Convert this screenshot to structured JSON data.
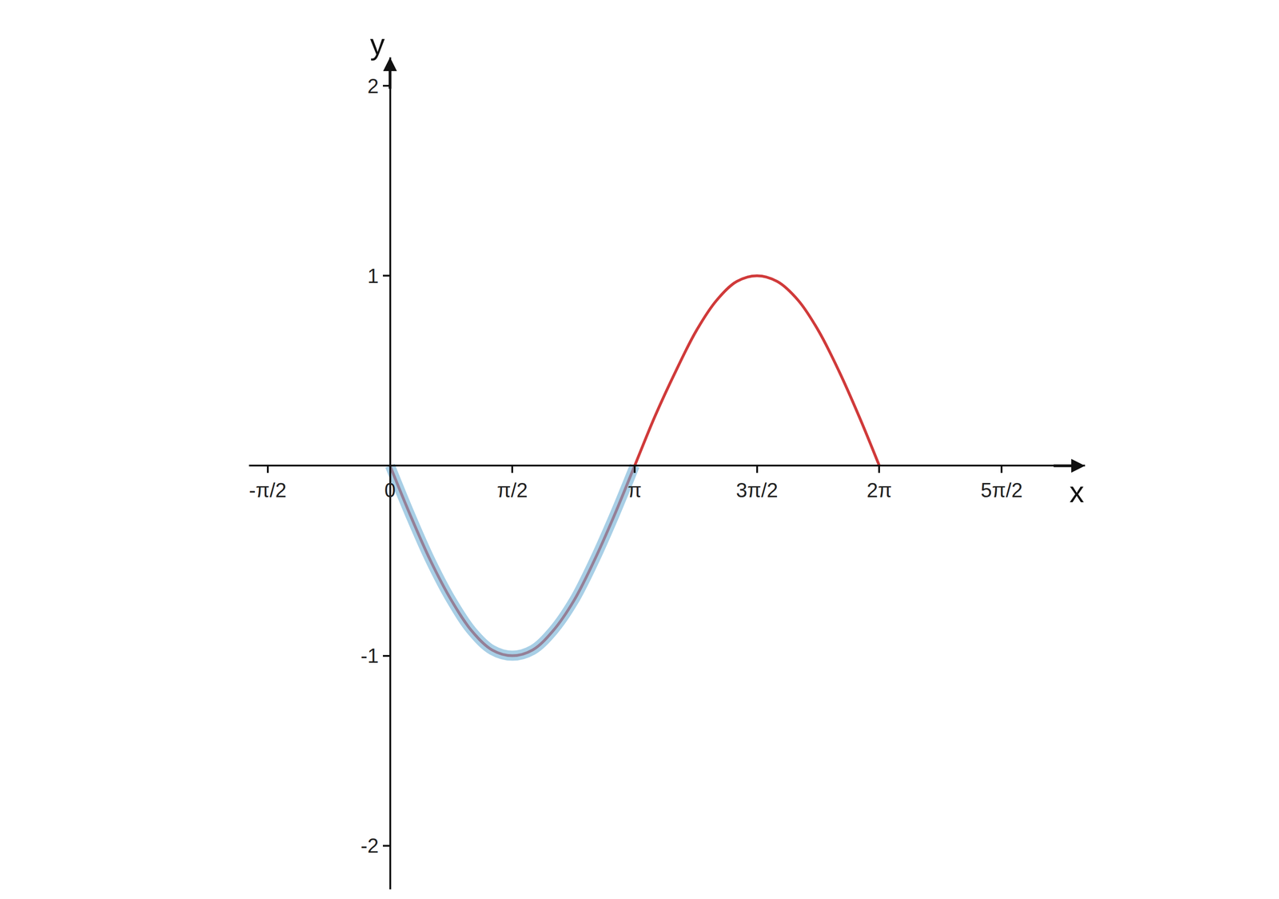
{
  "chart_data": {
    "type": "line",
    "x_label": "x",
    "y_label": "y",
    "xlim": [
      -1.81,
      8.92
    ],
    "ylim": [
      -2.23,
      2.15
    ],
    "xticks": [
      {
        "value": -1.57,
        "label": "-π/2"
      },
      0,
      {
        "value": 1.57,
        "label": "π/2"
      },
      {
        "value": 3.14,
        "label": "π"
      },
      {
        "value": 4.71,
        "label": "3π/2"
      },
      {
        "value": 6.28,
        "label": "2π"
      },
      {
        "value": 7.85,
        "label": "5π/2"
      }
    ],
    "yticks": [
      -2,
      -1,
      1,
      2
    ],
    "grid": false,
    "series": [
      {
        "color": "#d03a3a",
        "x": [
          0,
          0.26,
          0.52,
          0.79,
          1.05,
          1.31,
          1.57,
          1.83,
          2.09,
          2.36,
          2.62,
          2.88,
          3.14,
          3.4,
          3.67,
          3.93,
          4.19,
          4.45,
          4.71,
          4.97,
          5.24,
          5.5,
          5.76,
          6.02,
          6.28
        ],
        "values": [
          0,
          -0.26,
          -0.5,
          -0.71,
          -0.87,
          -0.97,
          -1,
          -0.97,
          -0.87,
          -0.71,
          -0.5,
          -0.26,
          0,
          0.26,
          0.5,
          0.71,
          0.87,
          0.97,
          1,
          0.97,
          0.87,
          0.71,
          0.5,
          0.26,
          0
        ]
      },
      {
        "color": "#6fb0d6",
        "x": [
          0,
          0.26,
          0.52,
          0.79,
          1.05,
          1.31,
          1.57,
          1.83,
          2.09,
          2.36,
          2.62,
          2.88,
          3.14
        ],
        "values": [
          0,
          -0.26,
          -0.5,
          -0.71,
          -0.87,
          -0.97,
          -1,
          -0.97,
          -0.87,
          -0.71,
          -0.5,
          -0.26,
          0
        ]
      }
    ]
  }
}
